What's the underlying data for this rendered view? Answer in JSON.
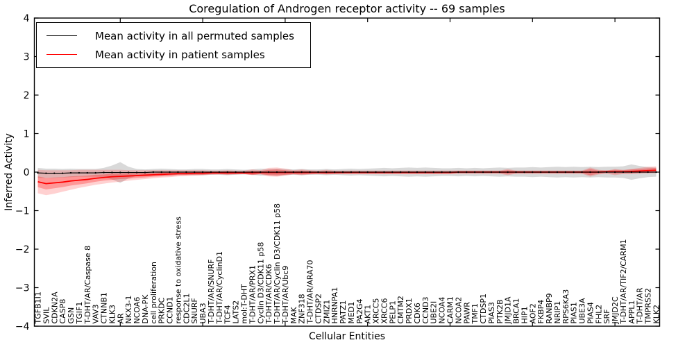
{
  "chart_data": {
    "type": "line",
    "title": "Coregulation of Androgen receptor activity -- 69 samples",
    "xlabel": "Cellular Entities",
    "ylabel": "Inferred Activity",
    "ylim": [
      -4,
      4
    ],
    "yticks": [
      -4,
      -3,
      -2,
      -1,
      0,
      1,
      2,
      3,
      4
    ],
    "grid": false,
    "legend_position": "upper left",
    "categories": [
      "TGFB1I1",
      "SVIL",
      "CDKN2A",
      "CASP8",
      "GSN",
      "TGIF1",
      "T-DHT/AR/Caspase 8",
      "VAV3",
      "CTNNB1",
      "KLK3",
      "AR",
      "NKX3-1",
      "NCOA6",
      "DNA-PK",
      "cell proliferation",
      "PRKDC",
      "CCND1",
      "response to oxidative stress",
      "CDC2L1",
      "SNURF",
      "UBA3",
      "T-DHT/AR/SNURF",
      "T-DHT/AR/CyclinD1",
      "TCF4",
      "LATS2",
      "mol:T-DHT",
      "T-DHT/AR/PRX1",
      "Cyclin D3/CDK11 p58",
      "T-DHT/AR/CDK6",
      "T-DHT/AR/Cyclin D3/CDK11 p58",
      "T-DHT/AR/Ubc9",
      "MAK",
      "ZNF318",
      "T-DHT/AR/ARA70",
      "CTDSP2",
      "ZMIZ1",
      "HNRNPA1",
      "PATZ1",
      "MED1",
      "PA2G4",
      "AKT1",
      "XRCC5",
      "XRCC6",
      "PELP1",
      "CMTM2",
      "PRDX1",
      "CDK6",
      "CCND3",
      "UBE2I",
      "NCOA4",
      "CARM1",
      "NCOA2",
      "PAWR",
      "TMF1",
      "CTDSP1",
      "PIAS3",
      "PTK2B",
      "JMJD1A",
      "BRCA1",
      "HIP1",
      "AOF2",
      "FKBP4",
      "RANBP9",
      "NRIP1",
      "RPS6KA3",
      "PIAS1",
      "UBE3A",
      "PIAS4",
      "FHL2",
      "SRF",
      "JMJD2C",
      "T-DHT/AR/TIF2/CARM1",
      "APPL1",
      "T-DHT/AR",
      "TMPRSS2",
      "KLK2"
    ],
    "series": [
      {
        "name": "Mean activity in all permuted samples",
        "color": "#000000",
        "band_fill": "#000000",
        "band_opacity": 0.15,
        "values": [
          -0.02,
          -0.03,
          -0.03,
          -0.03,
          -0.02,
          -0.02,
          -0.02,
          -0.02,
          -0.01,
          -0.01,
          -0.01,
          -0.01,
          -0.01,
          -0.01,
          0,
          0,
          0,
          0,
          0,
          0,
          0,
          0,
          0,
          0,
          0,
          0,
          0,
          0,
          0,
          0,
          0,
          0,
          0,
          0,
          0,
          0,
          0,
          0,
          0,
          0,
          0,
          0,
          0,
          0,
          0,
          0,
          0,
          0,
          0,
          0,
          0,
          0,
          0,
          0,
          0,
          0,
          0,
          0,
          0,
          0,
          0,
          0,
          0,
          0,
          0,
          0,
          0,
          0,
          0,
          0,
          0,
          0,
          0,
          0,
          0,
          0
        ],
        "band_halfwidth": [
          0.13,
          0.12,
          0.12,
          0.11,
          0.11,
          0.1,
          0.1,
          0.1,
          0.12,
          0.18,
          0.27,
          0.15,
          0.09,
          0.08,
          0.08,
          0.09,
          0.08,
          0.07,
          0.07,
          0.08,
          0.08,
          0.07,
          0.07,
          0.08,
          0.07,
          0.06,
          0.07,
          0.09,
          0.08,
          0.09,
          0.08,
          0.07,
          0.08,
          0.07,
          0.07,
          0.08,
          0.07,
          0.08,
          0.09,
          0.08,
          0.09,
          0.1,
          0.11,
          0.1,
          0.11,
          0.12,
          0.11,
          0.12,
          0.11,
          0.1,
          0.1,
          0.11,
          0.1,
          0.11,
          0.1,
          0.11,
          0.12,
          0.11,
          0.12,
          0.12,
          0.13,
          0.12,
          0.13,
          0.14,
          0.13,
          0.14,
          0.13,
          0.14,
          0.13,
          0.14,
          0.14,
          0.15,
          0.2,
          0.16,
          0.13,
          0.12
        ]
      },
      {
        "name": "Mean activity in patient samples",
        "color": "#ff0000",
        "band_fill": "#ff0000",
        "band_opacity_outer": 0.18,
        "band_opacity_inner": 0.28,
        "values": [
          -0.25,
          -0.3,
          -0.28,
          -0.26,
          -0.23,
          -0.21,
          -0.19,
          -0.16,
          -0.14,
          -0.12,
          -0.11,
          -0.1,
          -0.09,
          -0.08,
          -0.07,
          -0.06,
          -0.05,
          -0.04,
          -0.04,
          -0.03,
          -0.03,
          -0.02,
          -0.02,
          -0.02,
          -0.02,
          -0.02,
          -0.02,
          -0.01,
          -0.01,
          -0.01,
          -0.01,
          -0.01,
          -0.01,
          -0.01,
          -0.01,
          -0.01,
          -0.01,
          -0.01,
          -0.01,
          -0.01,
          -0.01,
          -0.01,
          -0.01,
          -0.01,
          -0.01,
          -0.01,
          -0.01,
          -0.01,
          -0.01,
          -0.01,
          -0.01,
          0,
          0,
          0,
          0,
          0,
          0,
          0,
          0,
          0,
          0,
          0,
          0,
          0,
          0,
          0,
          0,
          0,
          0,
          0.01,
          0.01,
          0.01,
          0.02,
          0.03,
          0.04,
          0.05
        ],
        "band_halfwidth": [
          0.14,
          0.15,
          0.14,
          0.13,
          0.12,
          0.11,
          0.1,
          0.09,
          0.08,
          0.08,
          0.07,
          0.07,
          0.06,
          0.06,
          0.05,
          0.05,
          0.05,
          0.04,
          0.04,
          0.04,
          0.04,
          0.03,
          0.03,
          0.04,
          0.03,
          0.03,
          0.05,
          0.04,
          0.07,
          0.08,
          0.06,
          0.04,
          0.05,
          0.04,
          0.03,
          0.04,
          0.03,
          0.03,
          0.03,
          0.03,
          0.03,
          0.03,
          0.03,
          0.03,
          0.03,
          0.03,
          0.03,
          0.03,
          0.03,
          0.03,
          0.03,
          0.03,
          0.03,
          0.03,
          0.03,
          0.03,
          0.03,
          0.05,
          0.03,
          0.03,
          0.03,
          0.03,
          0.03,
          0.03,
          0.03,
          0.03,
          0.03,
          0.08,
          0.04,
          0.03,
          0.05,
          0.04,
          0.05,
          0.05,
          0.06,
          0.06
        ],
        "band_lower": [
          -0.55,
          -0.6,
          -0.56,
          -0.51,
          -0.46,
          -0.41,
          -0.37,
          -0.33,
          -0.3,
          -0.27,
          -0.25,
          -0.22,
          -0.2,
          -0.18,
          -0.16,
          -0.14,
          -0.13,
          -0.11,
          -0.1,
          -0.09,
          -0.08,
          -0.07,
          -0.06,
          -0.07,
          -0.06,
          -0.05,
          -0.08,
          -0.06,
          -0.11,
          -0.12,
          -0.09,
          -0.06,
          -0.08,
          -0.06,
          -0.05,
          -0.06,
          -0.05,
          -0.04,
          -0.04,
          -0.04,
          -0.04,
          -0.04,
          -0.04,
          -0.04,
          -0.04,
          -0.04,
          -0.04,
          -0.04,
          -0.04,
          -0.04,
          -0.04,
          -0.04,
          -0.04,
          -0.04,
          -0.04,
          -0.04,
          -0.04,
          -0.08,
          -0.04,
          -0.04,
          -0.04,
          -0.04,
          -0.04,
          -0.04,
          -0.04,
          -0.04,
          -0.04,
          -0.12,
          -0.06,
          -0.04,
          -0.08,
          -0.05,
          -0.05,
          -0.04,
          -0.03,
          -0.03
        ],
        "band_upper": [
          0.06,
          0.05,
          0.05,
          0.05,
          0.05,
          0.06,
          0.06,
          0.06,
          0.06,
          0.06,
          0.06,
          0.05,
          0.05,
          0.05,
          0.05,
          0.05,
          0.05,
          0.05,
          0.05,
          0.05,
          0.05,
          0.04,
          0.04,
          0.05,
          0.04,
          0.04,
          0.07,
          0.05,
          0.11,
          0.12,
          0.09,
          0.05,
          0.07,
          0.05,
          0.04,
          0.06,
          0.04,
          0.04,
          0.04,
          0.04,
          0.04,
          0.04,
          0.04,
          0.04,
          0.04,
          0.04,
          0.04,
          0.04,
          0.04,
          0.04,
          0.04,
          0.04,
          0.04,
          0.04,
          0.04,
          0.04,
          0.04,
          0.08,
          0.04,
          0.04,
          0.04,
          0.04,
          0.04,
          0.04,
          0.04,
          0.04,
          0.04,
          0.12,
          0.06,
          0.04,
          0.08,
          0.06,
          0.08,
          0.11,
          0.14,
          0.15
        ]
      }
    ]
  }
}
